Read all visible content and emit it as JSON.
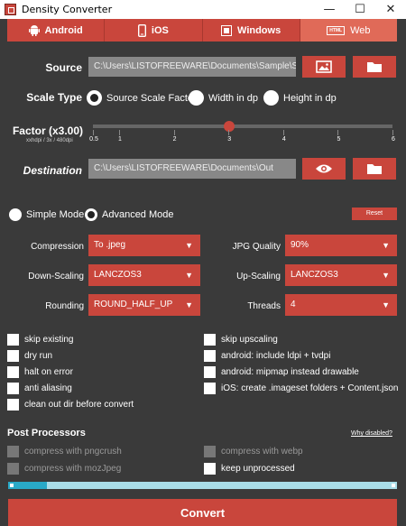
{
  "window": {
    "title": "Density Converter",
    "minimize": "—",
    "maximize": "☐",
    "close": "✕"
  },
  "tabs": [
    {
      "label": "Android",
      "icon": "android-icon",
      "active": false
    },
    {
      "label": "iOS",
      "icon": "phone-icon",
      "active": false
    },
    {
      "label": "Windows",
      "icon": "windows-icon",
      "active": false
    },
    {
      "label": "Web",
      "icon": "html-icon",
      "icon_text": "HTML",
      "active": true
    }
  ],
  "source": {
    "label": "Source",
    "path": "C:\\Users\\LISTOFREEWARE\\Documents\\Sample\\SVG\\"
  },
  "scale_type": {
    "label": "Scale Type",
    "options": [
      "Source Scale Factor",
      "Width in dp",
      "Height in dp"
    ],
    "selected": "Source Scale Factor"
  },
  "factor": {
    "label": "Factor (x3.00)",
    "sublabel": "xxhdpi / 3x / 480dpi",
    "value": 3.0,
    "min": 0.5,
    "max": 6,
    "ticks": [
      "0.5",
      "1",
      "2",
      "3",
      "4",
      "5",
      "6"
    ]
  },
  "destination": {
    "label": "Destination",
    "path": "C:\\Users\\LISTOFREEWARE\\Documents\\Out"
  },
  "mode": {
    "options": [
      "Simple Mode",
      "Advanced Mode"
    ],
    "selected": "Advanced Mode",
    "reset_label": "Reset"
  },
  "settings": {
    "compression": {
      "label": "Compression",
      "value": "To .jpeg"
    },
    "jpg_quality": {
      "label": "JPG Quality",
      "value": "90%"
    },
    "down_scaling": {
      "label": "Down-Scaling",
      "value": "LANCZOS3"
    },
    "up_scaling": {
      "label": "Up-Scaling",
      "value": "LANCZOS3"
    },
    "rounding": {
      "label": "Rounding",
      "value": "ROUND_HALF_UP"
    },
    "threads": {
      "label": "Threads",
      "value": "4"
    }
  },
  "checkboxes_left": [
    "skip existing",
    "dry run",
    "halt on error",
    "anti aliasing",
    "clean out dir before convert"
  ],
  "checkboxes_right": [
    "skip upscaling",
    "android: include ldpi + tvdpi",
    "android: mipmap instead drawable",
    "iOS: create .imageset folders + Content.json"
  ],
  "post_processors": {
    "label": "Post Processors",
    "why_label": "Why disabled?",
    "items": [
      {
        "label": "compress with pngcrush",
        "enabled": false
      },
      {
        "label": "compress with webp",
        "enabled": false
      },
      {
        "label": "compress with mozJpeg",
        "enabled": false
      },
      {
        "label": "keep unprocessed",
        "enabled": true
      }
    ]
  },
  "progress": {
    "value": 0.1
  },
  "convert_label": "Convert"
}
